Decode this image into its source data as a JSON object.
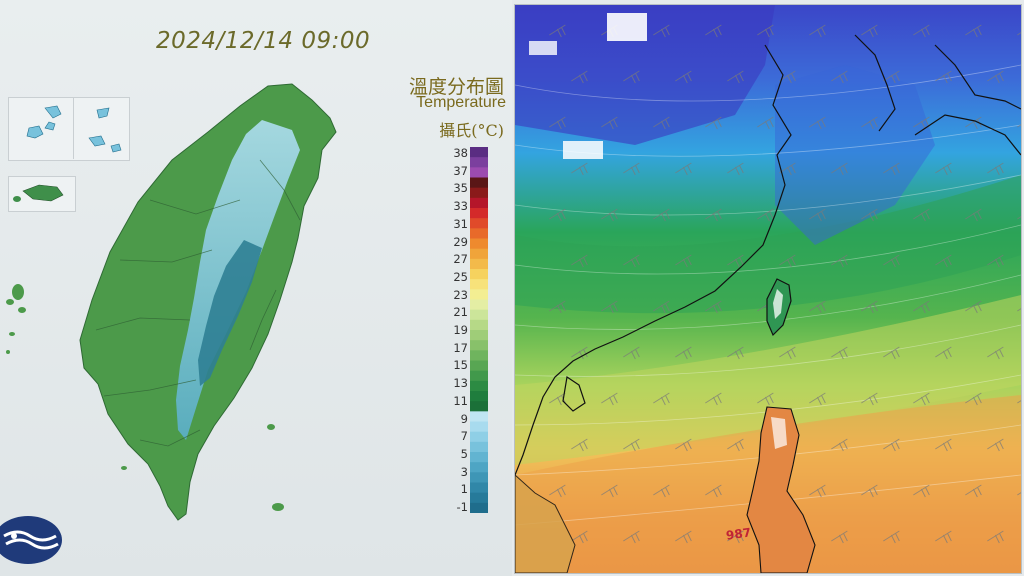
{
  "left_map": {
    "timestamp": "2024/12/14 09:00",
    "legend": {
      "title_zh": "溫度分布圖",
      "title_en": "Temperature",
      "unit": "攝氏(°C)",
      "tick_labels": [
        "38",
        "37",
        "35",
        "33",
        "31",
        "29",
        "27",
        "25",
        "23",
        "21",
        "19",
        "17",
        "15",
        "13",
        "11",
        "9",
        "7",
        "5",
        "3",
        "1",
        "-1"
      ],
      "colors": [
        "#5a2d82",
        "#7b3f9e",
        "#9c4bb0",
        "#5a1616",
        "#8a1a1a",
        "#b5162a",
        "#d42a2a",
        "#e04a2a",
        "#e86a2a",
        "#ee8a2e",
        "#f0a43a",
        "#f3ba4a",
        "#f6d25e",
        "#f7e27a",
        "#f3ee92",
        "#e4eea4",
        "#cce59a",
        "#b6d987",
        "#9fcd78",
        "#88c16a",
        "#6fb45e",
        "#58a653",
        "#41994b",
        "#2c8b43",
        "#1f7d3d",
        "#1b7038",
        "#bfe5f2",
        "#a8dbee",
        "#8fcfe6",
        "#78c2dc",
        "#62b4d1",
        "#4ea5c4",
        "#3e96b6",
        "#3087a8",
        "#267a9a",
        "#1f6d8c"
      ],
      "labels_note_none": ""
    },
    "regions": {
      "main_island_color": "#4c9a4a",
      "mountain_color": "#9fd3e3",
      "high_mountain_color": "#2f7f93"
    }
  },
  "right_map": {
    "pressure_label": "987",
    "palette": {
      "cold": "#3d4fd1",
      "cool": "#32a8e0",
      "mild": "#2e9e4f",
      "warm": "#a7d45f",
      "hot": "#f0b253",
      "hotter": "#e98a45"
    }
  }
}
